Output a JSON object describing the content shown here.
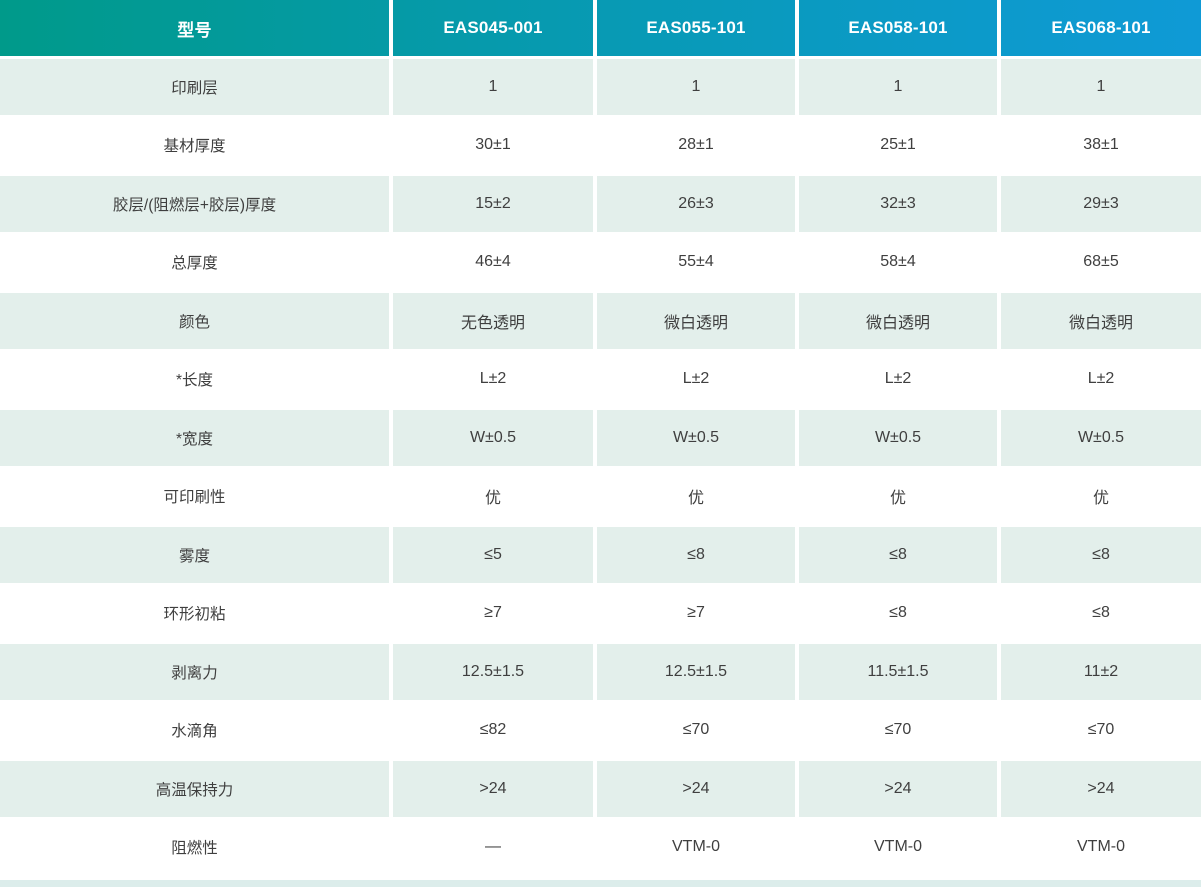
{
  "table": {
    "header": {
      "model_column_label": "型号",
      "models": [
        "EAS045-001",
        "EAS055-101",
        "EAS058-101",
        "EAS068-101"
      ]
    },
    "rows": [
      {
        "label": "印刷层",
        "values": [
          "1",
          "1",
          "1",
          "1"
        ]
      },
      {
        "label": "基材厚度",
        "values": [
          "30±1",
          "28±1",
          "25±1",
          "38±1"
        ]
      },
      {
        "label": "胶层/(阻燃层+胶层)厚度",
        "values": [
          "15±2",
          "26±3",
          "32±3",
          "29±3"
        ]
      },
      {
        "label": "总厚度",
        "values": [
          "46±4",
          "55±4",
          "58±4",
          "68±5"
        ]
      },
      {
        "label": "颜色",
        "values": [
          "无色透明",
          "微白透明",
          "微白透明",
          "微白透明"
        ]
      },
      {
        "label": "*长度",
        "values": [
          "L±2",
          "L±2",
          "L±2",
          "L±2"
        ]
      },
      {
        "label": "*宽度",
        "values": [
          "W±0.5",
          "W±0.5",
          "W±0.5",
          "W±0.5"
        ]
      },
      {
        "label": "可印刷性",
        "values": [
          "优",
          "优",
          "优",
          "优"
        ]
      },
      {
        "label": "雾度",
        "values": [
          "≤5",
          "≤8",
          "≤8",
          "≤8"
        ]
      },
      {
        "label": "环形初粘",
        "values": [
          "≥7",
          "≥7",
          "≤8",
          "≤8"
        ]
      },
      {
        "label": "剥离力",
        "values": [
          "12.5±1.5",
          "12.5±1.5",
          "11.5±1.5",
          "11±2"
        ]
      },
      {
        "label": "水滴角",
        "values": [
          "≤82",
          "≤70",
          "≤70",
          "≤70"
        ]
      },
      {
        "label": "高温保持力",
        "values": [
          ">24",
          ">24",
          ">24",
          ">24"
        ]
      },
      {
        "label": "阻燃性",
        "values": [
          "—",
          "VTM-0",
          "VTM-0",
          "VTM-0"
        ]
      }
    ]
  },
  "colors": {
    "header_gradient_start": "#009a8a",
    "header_gradient_end": "#0f9ad6",
    "shaded_row_bg": "#e3efeb",
    "bottom_strip_bg": "#dcedeb",
    "body_text": "#3f3f3f",
    "header_text": "#ffffff"
  }
}
